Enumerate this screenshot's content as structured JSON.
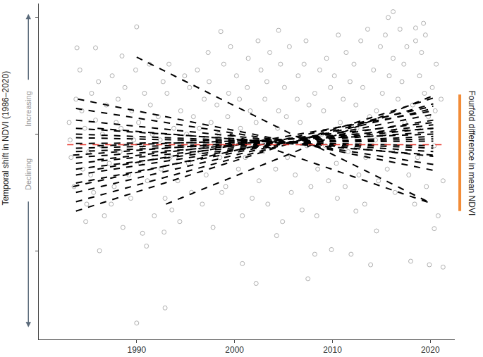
{
  "chart_data": {
    "type": "scatter",
    "ylabel": "Temporal shift in NDVI (1986–2020)",
    "ylabel_up": "Increasing",
    "ylabel_down": "Declining",
    "range_bar": {
      "text": "Fourfold difference in mean NDVI",
      "from": 0.34,
      "to": -0.66,
      "color": "#f28c38"
    },
    "xlim": [
      1980,
      2022.5
    ],
    "xticks": [
      1990,
      2000,
      2010,
      2020
    ],
    "ylim": [
      -1.76,
      1.12
    ],
    "yticks": [
      -1,
      0,
      1
    ],
    "tick_labels": "x",
    "grid": false,
    "series": [
      {
        "type": "scatter",
        "color": "#b0b0b0",
        "marker": "circle-open",
        "x": [
          1983.1,
          1983.3,
          1983.6,
          1983.8,
          1983.2,
          1984.2,
          1984.5,
          1984.7,
          1984.9,
          1984.4,
          1985.1,
          1985.4,
          1985.6,
          1985.8,
          1985.3,
          1986.1,
          1986.4,
          1986.7,
          1986.9,
          1986.5,
          1987.2,
          1987.5,
          1987.7,
          1987.9,
          1987.4,
          1988.1,
          1988.3,
          1988.6,
          1988.8,
          1988.4,
          1989.2,
          1989.5,
          1989.7,
          1989.9,
          1989.4,
          1990.2,
          1990.4,
          1990.6,
          1990.8,
          1990.5,
          1991.1,
          1991.4,
          1991.6,
          1991.8,
          1991.3,
          1992.2,
          1992.5,
          1992.7,
          1992.9,
          1992.4,
          1993.1,
          1993.4,
          1993.6,
          1993.8,
          1993.3,
          1994.2,
          1994.5,
          1994.7,
          1994.9,
          1994.4,
          1995.1,
          1995.4,
          1995.6,
          1995.8,
          1995.3,
          1996.2,
          1996.5,
          1996.7,
          1996.9,
          1996.4,
          1997.1,
          1997.4,
          1997.6,
          1997.8,
          1997.3,
          1998.2,
          1998.5,
          1998.7,
          1998.9,
          1998.4,
          1999.1,
          1999.4,
          1999.6,
          1999.8,
          1999.3,
          2000.2,
          2000.4,
          2000.6,
          2000.8,
          2000.5,
          2001.1,
          2001.4,
          2001.6,
          2001.8,
          2001.3,
          2002.2,
          2002.5,
          2002.7,
          2002.9,
          2002.4,
          2003.1,
          2003.4,
          2003.6,
          2003.8,
          2003.3,
          2004.2,
          2004.5,
          2004.7,
          2004.9,
          2004.4,
          2005.1,
          2005.4,
          2005.6,
          2005.8,
          2005.3,
          2006.2,
          2006.5,
          2006.7,
          2006.9,
          2006.4,
          2007.1,
          2007.4,
          2007.6,
          2007.8,
          2007.3,
          2008.2,
          2008.5,
          2008.7,
          2008.9,
          2008.4,
          2009.1,
          2009.4,
          2009.6,
          2009.8,
          2009.3,
          2010.2,
          2010.4,
          2010.6,
          2010.8,
          2010.5,
          2011.1,
          2011.4,
          2011.6,
          2011.8,
          2011.3,
          2012.2,
          2012.5,
          2012.7,
          2012.9,
          2012.4,
          2013.1,
          2013.4,
          2013.6,
          2013.8,
          2013.3,
          2014.2,
          2014.5,
          2014.7,
          2014.9,
          2014.4,
          2015.1,
          2015.4,
          2015.6,
          2015.8,
          2015.3,
          2016.2,
          2016.5,
          2016.7,
          2016.9,
          2016.4,
          2017.1,
          2017.4,
          2017.6,
          2017.8,
          2017.3,
          2018.2,
          2018.5,
          2018.7,
          2018.9,
          2018.4,
          2019.1,
          2019.4,
          2019.6,
          2019.8,
          2019.3,
          2020.2,
          2020.4,
          2020.6,
          2020.8,
          2020.5,
          2021.1,
          2021.3,
          1990,
          1990,
          1992.9,
          1988.5,
          1985.8,
          1998.6,
          2004.5,
          2016.2,
          2015.7,
          2018.5,
          2019.5,
          2002.2,
          2007.5,
          2013.9,
          2018,
          2019.9,
          1983.9,
          1984.8,
          1986.2,
          1991,
          1992.8,
          2000.8,
          2004.3,
          2008.2,
          2011.9,
          2014.5,
          2020.4,
          2021.3,
          2012.4,
          2009.9
        ],
        "values": [
          0.1,
          -0.2,
          -0.45,
          0.3,
          -0.05,
          0.55,
          -0.3,
          0.05,
          -0.6,
          0.2,
          -0.15,
          0.35,
          -0.5,
          0.12,
          -0.35,
          0.45,
          -0.1,
          -0.7,
          0.25,
          0.0,
          -0.25,
          0.5,
          -0.45,
          0.1,
          -0.6,
          0.3,
          -0.15,
          -0.8,
          0.4,
          0.05,
          -0.35,
          0.2,
          -0.05,
          0.55,
          -0.55,
          0.1,
          -0.25,
          -0.85,
          0.35,
          -0.1,
          -0.4,
          0.25,
          0.0,
          -0.7,
          0.6,
          0.15,
          -0.3,
          0.45,
          -0.55,
          -0.05,
          0.35,
          -0.2,
          -0.65,
          0.05,
          0.6,
          -0.4,
          0.2,
          -0.1,
          0.5,
          -0.75,
          0.0,
          0.4,
          -0.5,
          0.15,
          -0.25,
          0.55,
          -0.15,
          -0.6,
          0.3,
          0.05,
          -0.35,
          0.45,
          0.1,
          -0.8,
          0.7,
          0.25,
          -0.2,
          -0.5,
          0.6,
          0.0,
          -0.45,
          0.35,
          0.75,
          -0.1,
          0.15,
          0.5,
          -0.3,
          0.05,
          -0.7,
          0.3,
          -0.2,
          0.65,
          0.2,
          -0.55,
          0.4,
          0.1,
          -0.4,
          0.55,
          -0.15,
          0.8,
          0.3,
          -0.6,
          0.7,
          -0.05,
          0.45,
          -0.3,
          0.2,
          0.6,
          -0.75,
          0.05,
          0.4,
          -0.2,
          0.75,
          -0.5,
          0.15,
          -0.35,
          0.5,
          0.1,
          -0.65,
          0.3,
          0.6,
          -0.1,
          0.25,
          -0.45,
          0.8,
          0.35,
          -0.3,
          0.55,
          0.0,
          -0.7,
          0.2,
          0.65,
          -0.4,
          0.4,
          -0.1,
          0.5,
          -0.25,
          0.85,
          0.1,
          -0.55,
          0.3,
          0.7,
          -0.15,
          0.45,
          -0.45,
          0.6,
          0.05,
          -0.35,
          0.8,
          0.25,
          0.4,
          -0.2,
          0.9,
          0.15,
          -0.6,
          0.55,
          0.2,
          -0.4,
          0.75,
          -0.05,
          0.35,
          0.85,
          -0.3,
          0.5,
          0.0,
          0.65,
          -0.15,
          0.3,
          0.9,
          -0.5,
          0.45,
          0.1,
          0.75,
          -0.35,
          0.6,
          0.25,
          0.8,
          -0.2,
          0.5,
          -0.6,
          0.7,
          0.35,
          -0.45,
          0.15,
          0.95,
          0.4,
          -0.1,
          0.6,
          -0.7,
          0.2,
          0.3,
          -0.4,
          0.92,
          -1.62,
          -1.49,
          0.67,
          0.74,
          0.88,
          0.89,
          1.05,
          1.0,
          0.91,
          0.85,
          -1.28,
          -1.24,
          -1.12,
          -1.09,
          -1.12,
          0.74,
          -0.75,
          -1.0,
          -0.96,
          -0.84,
          -1.11,
          -0.87,
          -1.03,
          -1.03,
          -0.83,
          -0.81,
          -1.14,
          -0.66,
          -0.99
        ]
      },
      {
        "type": "line",
        "color": "#000000",
        "line_style": "dash",
        "segments": [
          [
            1983.8,
            0.22,
            2020.3,
            -0.26
          ],
          [
            1983.8,
            0.12,
            2020.3,
            -0.19
          ],
          [
            1983.8,
            0.05,
            2020.3,
            -0.15
          ],
          [
            1983.8,
            0.0,
            2020.3,
            -0.12
          ],
          [
            1983.8,
            -0.03,
            2020.3,
            -0.1
          ],
          [
            1983.8,
            -0.08,
            2020.3,
            -0.06
          ],
          [
            1983.8,
            -0.12,
            2020.3,
            -0.04
          ],
          [
            1983.8,
            -0.15,
            2020.3,
            -0.02
          ],
          [
            1983.8,
            -0.2,
            2020.3,
            0.02
          ],
          [
            1983.8,
            -0.25,
            2020.3,
            0.05
          ],
          [
            1983.8,
            -0.3,
            2020.3,
            0.08
          ],
          [
            1983.8,
            -0.35,
            2020.3,
            0.12
          ],
          [
            1983.8,
            -0.42,
            2020.3,
            0.17
          ],
          [
            1983.8,
            -0.5,
            2020.3,
            0.22
          ],
          [
            1983.8,
            -0.58,
            2020.3,
            0.26
          ],
          [
            1983.8,
            -0.66,
            2020.3,
            0.31
          ],
          [
            1986,
            -0.1,
            2020.3,
            0.0
          ],
          [
            1986,
            -0.22,
            2020.3,
            0.1
          ],
          [
            1986,
            0.05,
            2020.3,
            -0.18
          ],
          [
            1986,
            -0.3,
            2020.3,
            0.2
          ],
          [
            1983.5,
            -0.45,
            2020.3,
            0.24
          ],
          [
            1983.5,
            -0.18,
            2020.3,
            0.05
          ],
          [
            1990,
            0.66,
            2020,
            -0.59
          ],
          [
            1999.5,
            0.0,
            2020.3,
            -0.6
          ],
          [
            1993,
            -0.6,
            2020.3,
            0.33
          ],
          [
            1984,
            0.3,
            2020.3,
            -0.31
          ]
        ]
      },
      {
        "type": "line",
        "color": "#e8382f",
        "line_style": "dash",
        "x": [
          1982.9,
          2021.5
        ],
        "values": [
          -0.09,
          -0.09
        ]
      }
    ]
  }
}
